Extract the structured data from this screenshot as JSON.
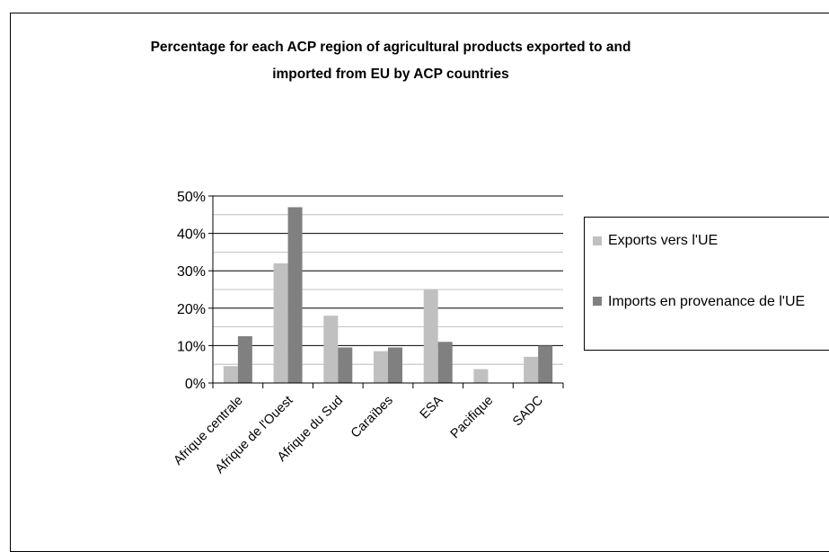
{
  "chart_data": {
    "type": "bar",
    "title": "Percentage for each ACP region of agricultural products exported to and\nimported from EU by ACP countries",
    "categories": [
      "Afrique centrale",
      "Afrique de l'Ouest",
      "Afrique du Sud",
      "Caraïbes",
      "ESA",
      "Pacifique",
      "SADC"
    ],
    "series": [
      {
        "name": "Exports vers l'UE",
        "values": [
          4.5,
          32,
          18,
          8.5,
          25,
          3.7,
          7
        ],
        "color": "#c0c0c0"
      },
      {
        "name": "Imports en provenance de l'UE",
        "values": [
          12.5,
          47,
          9.5,
          9.5,
          11,
          0,
          10
        ],
        "color": "#808080"
      }
    ],
    "y_tick_labels": [
      "0%",
      "10%",
      "20%",
      "30%",
      "40%",
      "50%"
    ],
    "ylim": [
      0,
      50
    ],
    "grid": true,
    "legend": "right"
  }
}
